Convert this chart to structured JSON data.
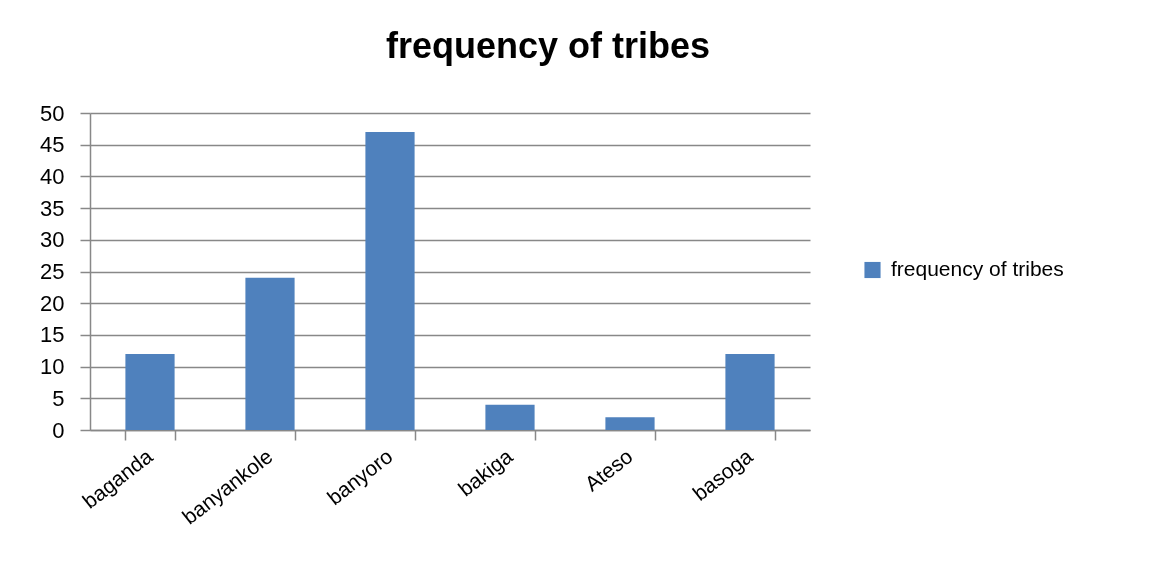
{
  "chart_data": {
    "type": "bar",
    "title": "frequency of tribes",
    "categories": [
      "baganda",
      "banyankole",
      "banyoro",
      "bakiga",
      "Ateso",
      "basoga"
    ],
    "series": [
      {
        "name": "frequency of tribes",
        "color": "#4f81bd",
        "values": [
          12,
          24,
          47,
          4,
          2,
          12
        ]
      }
    ],
    "ylim": [
      0,
      50
    ],
    "yticks": [
      0,
      5,
      10,
      15,
      20,
      25,
      30,
      35,
      40,
      45,
      50
    ],
    "grid": "y",
    "legend": "right"
  }
}
